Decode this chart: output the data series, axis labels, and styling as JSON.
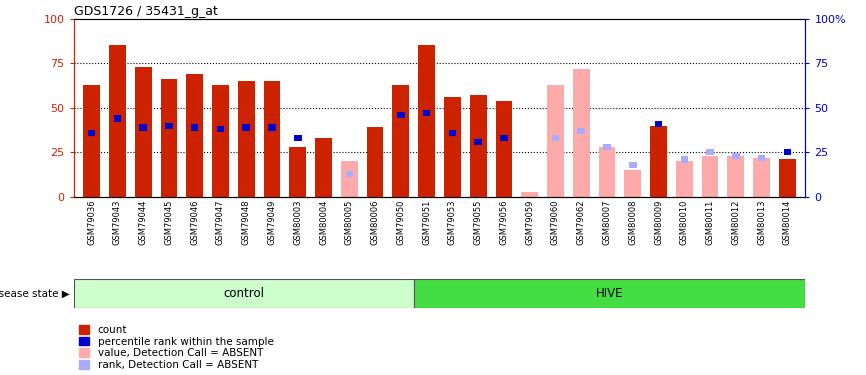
{
  "title": "GDS1726 / 35431_g_at",
  "samples": [
    "GSM79036",
    "GSM79043",
    "GSM79044",
    "GSM79045",
    "GSM79046",
    "GSM79047",
    "GSM79048",
    "GSM79049",
    "GSM80003",
    "GSM80004",
    "GSM80005",
    "GSM80006",
    "GSM79050",
    "GSM79051",
    "GSM79053",
    "GSM79055",
    "GSM79056",
    "GSM79059",
    "GSM79060",
    "GSM79062",
    "GSM80007",
    "GSM80008",
    "GSM80009",
    "GSM80010",
    "GSM80011",
    "GSM80012",
    "GSM80013",
    "GSM80014"
  ],
  "disease_state": [
    "control",
    "control",
    "control",
    "control",
    "control",
    "control",
    "control",
    "control",
    "control",
    "control",
    "control",
    "control",
    "control",
    "HIVE",
    "HIVE",
    "HIVE",
    "HIVE",
    "HIVE",
    "HIVE",
    "HIVE",
    "HIVE",
    "HIVE",
    "HIVE",
    "HIVE",
    "HIVE",
    "HIVE",
    "HIVE",
    "HIVE"
  ],
  "count_values": [
    63,
    85,
    73,
    66,
    69,
    63,
    65,
    65,
    28,
    33,
    0,
    39,
    63,
    85,
    56,
    57,
    54,
    0,
    0,
    0,
    0,
    0,
    40,
    0,
    0,
    0,
    0,
    21
  ],
  "percentile_rank": [
    36,
    44,
    39,
    40,
    39,
    38,
    39,
    39,
    33,
    null,
    null,
    null,
    46,
    47,
    36,
    31,
    33,
    null,
    null,
    null,
    null,
    null,
    41,
    null,
    null,
    null,
    null,
    25
  ],
  "absent_value": [
    null,
    null,
    null,
    null,
    null,
    null,
    null,
    null,
    null,
    null,
    20,
    null,
    null,
    null,
    null,
    null,
    null,
    3,
    63,
    72,
    28,
    15,
    null,
    20,
    23,
    23,
    22,
    null
  ],
  "absent_rank": [
    null,
    null,
    null,
    null,
    null,
    null,
    null,
    null,
    null,
    null,
    13,
    null,
    null,
    null,
    null,
    null,
    null,
    null,
    33,
    37,
    28,
    18,
    null,
    21,
    25,
    23,
    22,
    null
  ],
  "control_count": 13,
  "control_label": "control",
  "hive_label": "HIVE",
  "disease_state_label": "disease state",
  "legend_items": [
    {
      "label": "count",
      "color": "#cc2200"
    },
    {
      "label": "percentile rank within the sample",
      "color": "#0000cc"
    },
    {
      "label": "value, Detection Call = ABSENT",
      "color": "#ffaaaa"
    },
    {
      "label": "rank, Detection Call = ABSENT",
      "color": "#aaaaff"
    }
  ],
  "bar_color_red": "#cc2200",
  "bar_color_blue": "#0000cc",
  "bar_color_pink": "#ffaaaa",
  "bar_color_lblue": "#aaaaff",
  "yticks": [
    0,
    25,
    50,
    75,
    100
  ],
  "grid_lines": [
    25,
    50,
    75
  ],
  "bg_labels": "#d3d3d3",
  "control_bg": "#ccffcc",
  "hive_bg": "#44dd44"
}
